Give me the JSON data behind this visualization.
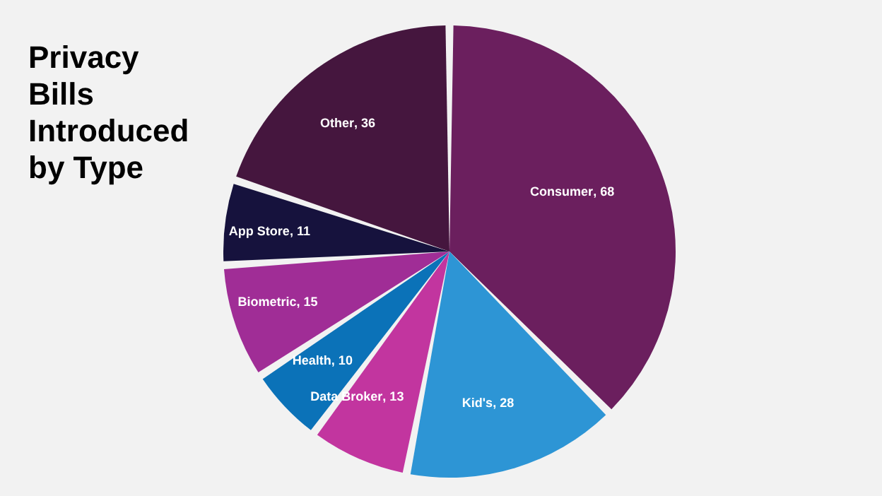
{
  "chart_data": {
    "type": "pie",
    "title": "Privacy Bills Introduced by Type",
    "categories": [
      "Consumer ",
      "Kid's",
      "Data Broker",
      "Health",
      "Biometric",
      "App Store",
      "Other"
    ],
    "values": [
      68,
      28,
      13,
      10,
      15,
      11,
      36
    ],
    "value_labels": [
      ", 68",
      ", 28",
      ", 13",
      ", 10",
      ", 15",
      ", 11",
      ", 36"
    ],
    "colors": [
      "#6b1f5e",
      "#2d95d5",
      "#c2359f",
      "#0b72b8",
      "#a02d96",
      "#16123d",
      "#45163e"
    ]
  }
}
